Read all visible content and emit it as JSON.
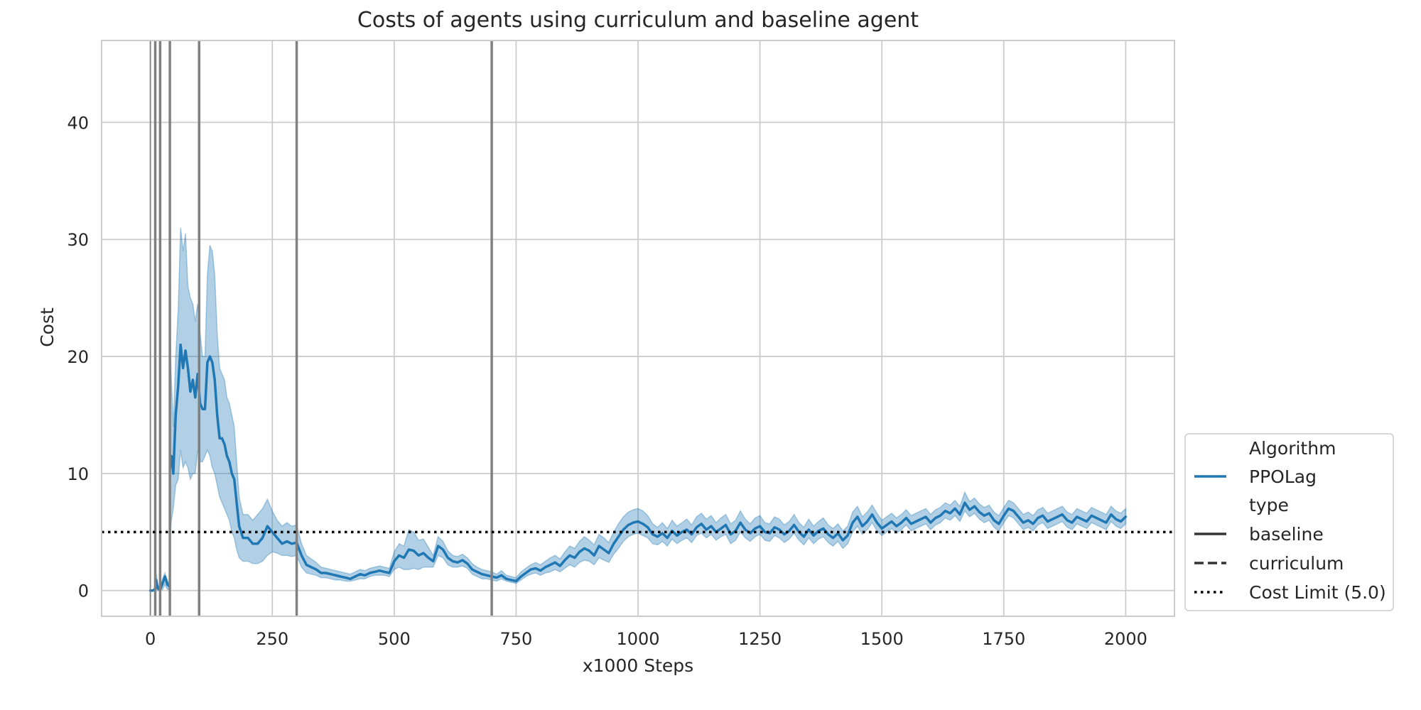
{
  "chart_data": {
    "type": "line",
    "title": "Costs of agents using curriculum and baseline agent",
    "xlabel": "x1000 Steps",
    "ylabel": "Cost",
    "xlim": [
      -100,
      2100
    ],
    "ylim": [
      -2.2,
      47
    ],
    "xticks": [
      0,
      250,
      500,
      750,
      1000,
      1250,
      1500,
      1750,
      2000
    ],
    "yticks": [
      0,
      10,
      20,
      30,
      40
    ],
    "grid": true,
    "legend_position": "lower-right",
    "colors": {
      "series": "#1f77b4",
      "band": "#1f77b4",
      "vlines": "#808080",
      "limit": "#000000",
      "grid": "#cccccc"
    },
    "legend": {
      "algorithm_header": "Algorithm",
      "algorithm_entry": "PPOLag",
      "type_header": "type",
      "type_entries": [
        "baseline",
        "curriculum"
      ],
      "limit_entry": "Cost Limit (5.0)"
    },
    "cost_limit": 5.0,
    "curriculum_switches": [
      0,
      10,
      20,
      40,
      100,
      300,
      700
    ],
    "series": [
      {
        "name": "PPOLag",
        "style": "solid",
        "segments": [
          {
            "x": [
              0,
              5,
              10,
              12,
              15,
              20,
              25,
              30,
              35,
              38
            ],
            "y": [
              0.0,
              0.0,
              0.1,
              0.9,
              0.2,
              0.1,
              0.6,
              1.2,
              0.5,
              0.4
            ],
            "lower": [
              0.0,
              0.0,
              0.0,
              0.3,
              0.0,
              0.0,
              0.1,
              0.5,
              0.1,
              0.1
            ],
            "upper": [
              0.0,
              0.0,
              0.4,
              1.4,
              0.5,
              0.3,
              1.0,
              1.5,
              0.8,
              0.7
            ]
          },
          {
            "x": [
              40,
              43,
              47,
              52,
              57,
              62,
              67,
              72,
              77,
              82,
              87,
              92,
              97,
              102,
              107,
              112,
              117,
              122,
              127,
              132,
              137,
              142,
              147,
              152,
              157,
              162,
              167,
              172,
              177,
              182,
              190,
              200,
              210,
              220,
              230,
              240,
              250,
              260,
              270,
              280,
              290,
              300,
              310,
              320,
              330,
              340,
              350,
              360,
              370,
              380,
              390,
              400,
              410,
              420,
              430,
              440,
              450,
              460,
              470,
              480,
              490,
              500,
              510,
              520,
              530,
              540,
              550,
              560,
              570,
              580,
              590,
              600,
              610,
              620,
              630,
              640,
              650,
              660,
              670,
              680,
              690,
              700,
              710,
              720,
              730,
              740,
              750,
              760,
              770,
              780,
              790,
              800,
              810,
              820,
              830,
              840,
              850,
              860,
              870,
              880,
              890,
              900,
              910,
              920,
              930,
              940,
              950,
              960,
              970,
              980,
              990,
              1000,
              1010,
              1020,
              1030,
              1040,
              1050,
              1060,
              1070,
              1080,
              1090,
              1100,
              1110,
              1120,
              1130,
              1140,
              1150,
              1160,
              1170,
              1180,
              1190,
              1200,
              1210,
              1220,
              1230,
              1240,
              1250,
              1260,
              1270,
              1280,
              1290,
              1300,
              1310,
              1320,
              1330,
              1340,
              1350,
              1360,
              1370,
              1380,
              1390,
              1400,
              1410,
              1420,
              1430,
              1440,
              1450,
              1460,
              1470,
              1480,
              1490,
              1500,
              1510,
              1520,
              1530,
              1540,
              1550,
              1560,
              1570,
              1580,
              1590,
              1600,
              1610,
              1620,
              1630,
              1640,
              1650,
              1660,
              1670,
              1680,
              1690,
              1700,
              1710,
              1720,
              1730,
              1740,
              1750,
              1760,
              1770,
              1780,
              1790,
              1800,
              1810,
              1820,
              1830,
              1840,
              1850,
              1860,
              1870,
              1880,
              1890,
              1900,
              1910,
              1920,
              1930,
              1940,
              1950,
              1960,
              1970,
              1980,
              1990,
              2000
            ],
            "y": [
              10.5,
              11.5,
              10.0,
              15.0,
              17.5,
              21.0,
              19.0,
              20.5,
              19.0,
              17.0,
              18.0,
              16.5,
              18.5,
              16.0,
              15.5,
              15.5,
              19.5,
              20.0,
              19.5,
              18.0,
              15.0,
              13.0,
              13.0,
              12.5,
              11.5,
              11.0,
              10.0,
              9.5,
              7.5,
              5.5,
              4.5,
              4.5,
              4.0,
              4.0,
              4.5,
              5.5,
              5.0,
              4.5,
              4.0,
              4.2,
              4.0,
              4.1,
              3.0,
              2.2,
              2.0,
              1.8,
              1.5,
              1.5,
              1.4,
              1.3,
              1.2,
              1.1,
              1.0,
              1.2,
              1.4,
              1.3,
              1.5,
              1.6,
              1.7,
              1.6,
              1.5,
              2.5,
              3.0,
              2.8,
              3.5,
              3.4,
              3.0,
              3.2,
              2.8,
              2.5,
              3.8,
              3.5,
              2.8,
              2.5,
              2.4,
              2.6,
              2.3,
              1.8,
              1.6,
              1.4,
              1.3,
              1.2,
              1.1,
              1.3,
              1.0,
              0.9,
              0.8,
              1.2,
              1.5,
              1.8,
              1.9,
              1.7,
              2.0,
              2.2,
              2.4,
              2.1,
              2.6,
              3.0,
              2.8,
              3.3,
              3.6,
              3.4,
              3.0,
              3.8,
              3.5,
              3.2,
              4.0,
              4.6,
              5.2,
              5.6,
              5.8,
              5.9,
              5.7,
              5.4,
              4.8,
              4.6,
              4.9,
              4.5,
              5.1,
              4.7,
              5.0,
              5.2,
              4.8,
              5.4,
              5.7,
              5.2,
              5.5,
              5.0,
              5.3,
              5.6,
              4.8,
              5.1,
              5.8,
              5.2,
              4.9,
              5.3,
              5.5,
              5.0,
              4.9,
              5.4,
              5.2,
              4.8,
              5.1,
              5.6,
              5.0,
              4.6,
              5.2,
              4.7,
              5.1,
              5.3,
              4.8,
              4.5,
              4.9,
              4.3,
              4.7,
              5.8,
              6.3,
              5.5,
              5.9,
              6.5,
              5.8,
              5.3,
              5.6,
              5.9,
              5.5,
              5.8,
              6.2,
              5.7,
              5.9,
              6.1,
              6.3,
              5.8,
              6.2,
              6.4,
              6.8,
              6.6,
              7.0,
              6.5,
              7.5,
              6.9,
              7.2,
              6.7,
              6.4,
              6.6,
              6.0,
              5.7,
              6.4,
              7.0,
              6.8,
              6.3,
              5.8,
              6.0,
              5.7,
              6.2,
              6.4,
              5.9,
              6.1,
              6.3,
              6.5,
              6.0,
              5.8,
              6.3,
              6.1,
              5.9,
              6.4,
              6.2,
              6.0,
              5.8,
              6.5,
              6.1,
              5.9,
              6.3
            ],
            "lower": [
              4.0,
              6.0,
              7.0,
              9.0,
              9.5,
              12.0,
              10.5,
              11.0,
              10.5,
              9.5,
              10.0,
              10.0,
              12.0,
              11.0,
              11.0,
              11.5,
              12.0,
              11.5,
              10.5,
              10.0,
              9.0,
              8.0,
              7.5,
              7.0,
              6.5,
              6.0,
              5.0,
              4.5,
              3.5,
              2.8,
              2.5,
              2.5,
              2.3,
              2.3,
              2.5,
              3.0,
              3.3,
              3.2,
              3.0,
              3.0,
              2.9,
              3.0,
              2.0,
              1.5,
              1.4,
              1.3,
              1.1,
              1.1,
              1.0,
              0.9,
              0.9,
              0.8,
              0.8,
              0.9,
              1.0,
              1.0,
              1.2,
              1.3,
              1.3,
              1.3,
              1.2,
              1.8,
              2.0,
              1.8,
              1.8,
              1.9,
              1.8,
              2.0,
              2.0,
              2.0,
              3.0,
              2.8,
              2.2,
              2.0,
              2.0,
              2.1,
              1.9,
              1.4,
              1.2,
              1.0,
              1.0,
              0.9,
              0.8,
              1.0,
              0.8,
              0.7,
              0.6,
              0.9,
              1.2,
              1.4,
              1.5,
              1.3,
              1.5,
              1.6,
              1.8,
              1.6,
              1.9,
              2.2,
              2.0,
              2.4,
              2.6,
              2.5,
              2.2,
              2.8,
              2.6,
              2.4,
              3.1,
              3.6,
              4.2,
              4.6,
              4.8,
              4.9,
              4.7,
              4.5,
              4.0,
              3.9,
              4.2,
              3.8,
              4.4,
              4.0,
              4.3,
              4.5,
              4.1,
              4.7,
              4.9,
              4.5,
              4.8,
              4.3,
              4.6,
              4.8,
              4.0,
              4.3,
              5.0,
              4.5,
              4.2,
              4.6,
              4.8,
              4.3,
              4.2,
              4.7,
              4.5,
              4.1,
              4.4,
              4.9,
              4.3,
              3.9,
              4.5,
              4.0,
              4.4,
              4.6,
              4.1,
              3.8,
              4.2,
              3.6,
              4.0,
              5.0,
              5.5,
              4.8,
              5.2,
              5.8,
              5.1,
              4.7,
              5.0,
              5.3,
              4.9,
              5.2,
              5.6,
              5.1,
              5.3,
              5.5,
              5.7,
              5.2,
              5.6,
              5.8,
              6.2,
              6.0,
              6.4,
              5.9,
              6.8,
              6.3,
              6.6,
              6.1,
              5.8,
              6.0,
              5.4,
              5.1,
              5.8,
              6.4,
              6.2,
              5.7,
              5.2,
              5.4,
              5.1,
              5.6,
              5.8,
              5.3,
              5.5,
              5.7,
              5.9,
              5.4,
              5.2,
              5.7,
              5.5,
              5.3,
              5.8,
              5.6,
              5.4,
              5.2,
              5.9,
              5.5,
              5.3,
              5.7
            ],
            "upper": [
              22.5,
              18.0,
              14.0,
              20.0,
              24.0,
              31.0,
              29.0,
              30.5,
              26.0,
              25.0,
              24.5,
              23.0,
              24.5,
              22.0,
              20.0,
              20.0,
              27.0,
              29.5,
              29.0,
              27.0,
              22.0,
              19.0,
              18.5,
              18.0,
              16.5,
              16.0,
              15.0,
              14.0,
              11.0,
              8.0,
              6.5,
              6.5,
              6.0,
              6.5,
              7.0,
              7.8,
              6.8,
              6.0,
              5.5,
              5.8,
              5.5,
              5.6,
              4.0,
              3.0,
              2.7,
              2.4,
              2.0,
              1.9,
              1.8,
              1.7,
              1.6,
              1.5,
              1.4,
              1.6,
              1.8,
              1.7,
              1.9,
              2.0,
              2.1,
              2.0,
              1.9,
              3.3,
              4.0,
              3.8,
              5.2,
              5.0,
              4.3,
              4.4,
              3.7,
              3.0,
              4.6,
              4.2,
              3.4,
              3.0,
              2.9,
              3.1,
              2.8,
              2.3,
              2.0,
              1.8,
              1.7,
              1.6,
              1.4,
              1.7,
              1.3,
              1.2,
              1.1,
              1.6,
              1.9,
              2.2,
              2.4,
              2.2,
              2.5,
              2.8,
              3.0,
              2.7,
              3.3,
              3.8,
              3.6,
              4.2,
              4.6,
              4.3,
              3.9,
              4.8,
              4.5,
              4.1,
              5.0,
              5.7,
              6.3,
              6.7,
              6.9,
              7.0,
              6.8,
              6.4,
              5.7,
              5.4,
              5.8,
              5.3,
              6.0,
              5.5,
              5.8,
              6.1,
              5.6,
              6.3,
              6.6,
              6.1,
              6.4,
              5.8,
              6.2,
              6.5,
              5.7,
              6.0,
              6.8,
              6.1,
              5.7,
              6.2,
              6.4,
              5.8,
              5.7,
              6.3,
              6.1,
              5.6,
              5.9,
              6.5,
              5.8,
              5.4,
              6.1,
              5.5,
              5.9,
              6.2,
              5.6,
              5.3,
              5.7,
              5.1,
              5.5,
              6.7,
              7.2,
              6.3,
              6.7,
              7.3,
              6.6,
              6.0,
              6.3,
              6.6,
              6.2,
              6.5,
              6.9,
              6.4,
              6.6,
              6.8,
              7.0,
              6.5,
              6.9,
              7.1,
              7.5,
              7.3,
              7.7,
              7.2,
              8.4,
              7.6,
              7.9,
              7.4,
              7.1,
              7.3,
              6.7,
              6.4,
              7.1,
              7.7,
              7.5,
              7.0,
              6.5,
              6.7,
              6.4,
              6.9,
              7.1,
              6.6,
              6.8,
              7.0,
              7.2,
              6.7,
              6.5,
              7.0,
              6.8,
              6.6,
              7.1,
              6.9,
              6.7,
              6.5,
              7.2,
              6.8,
              6.6,
              7.0
            ]
          }
        ]
      }
    ]
  }
}
